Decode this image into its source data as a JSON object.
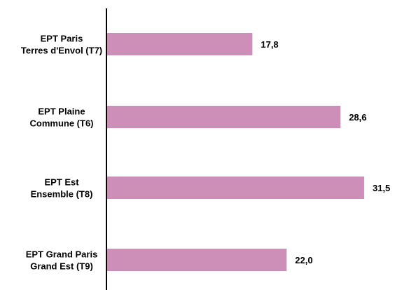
{
  "chart_data": {
    "type": "bar",
    "orientation": "horizontal",
    "categories": [
      [
        "EPT Paris",
        "Terres d'Envol (T7)"
      ],
      [
        "EPT Plaine",
        "Commune (T6)"
      ],
      [
        "EPT Est",
        "Ensemble (T8)"
      ],
      [
        "EPT Grand Paris",
        "Grand Est (T9)"
      ]
    ],
    "values": [
      17.8,
      28.6,
      31.5,
      22.0
    ],
    "value_labels": [
      "17,8",
      "28,6",
      "31,5",
      "22,0"
    ],
    "xlim": [
      0,
      32.5
    ],
    "grid": false,
    "legend": "none",
    "colors": {
      "bar": "#cd8fb7",
      "axis": "#000000",
      "text": "#000000"
    }
  }
}
